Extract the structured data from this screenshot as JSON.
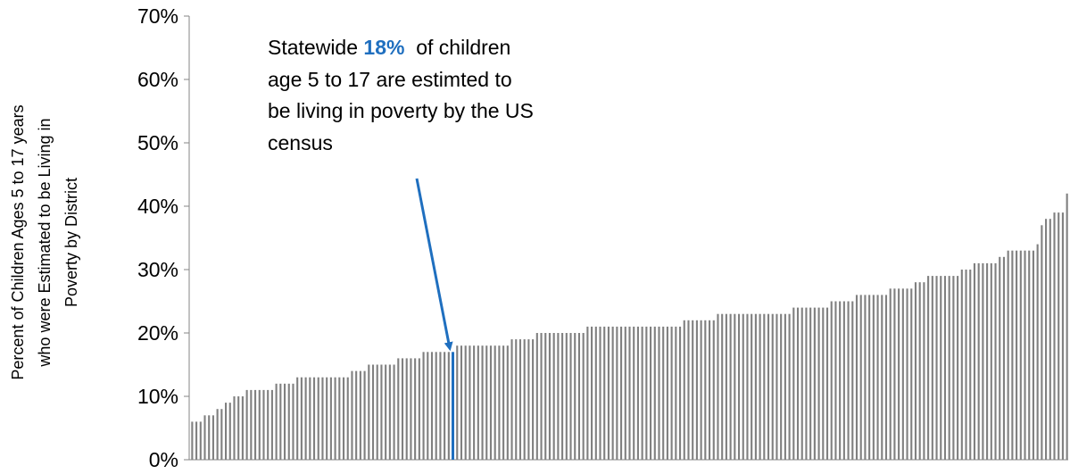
{
  "chart_data": {
    "type": "bar",
    "ylabel_lines": [
      "Percent of Children Ages 5 to 17 years",
      "who were Estimated to be Living in",
      "Poverty by District"
    ],
    "ylim": [
      0,
      70
    ],
    "yticks": [
      "0%",
      "10%",
      "20%",
      "30%",
      "40%",
      "50%",
      "60%",
      "70%"
    ],
    "bar_color": "#808080",
    "highlight_color": "#1f6fbf",
    "highlight_index": 62,
    "values": [
      6,
      6,
      6,
      7,
      7,
      7,
      8,
      8,
      9,
      9,
      10,
      10,
      10,
      11,
      11,
      11,
      11,
      11,
      11,
      11,
      12,
      12,
      12,
      12,
      12,
      13,
      13,
      13,
      13,
      13,
      13,
      13,
      13,
      13,
      13,
      13,
      13,
      13,
      14,
      14,
      14,
      14,
      15,
      15,
      15,
      15,
      15,
      15,
      15,
      16,
      16,
      16,
      16,
      16,
      16,
      17,
      17,
      17,
      17,
      17,
      17,
      17,
      17,
      18,
      18,
      18,
      18,
      18,
      18,
      18,
      18,
      18,
      18,
      18,
      18,
      18,
      19,
      19,
      19,
      19,
      19,
      19,
      20,
      20,
      20,
      20,
      20,
      20,
      20,
      20,
      20,
      20,
      20,
      20,
      21,
      21,
      21,
      21,
      21,
      21,
      21,
      21,
      21,
      21,
      21,
      21,
      21,
      21,
      21,
      21,
      21,
      21,
      21,
      21,
      21,
      21,
      21,
      22,
      22,
      22,
      22,
      22,
      22,
      22,
      22,
      23,
      23,
      23,
      23,
      23,
      23,
      23,
      23,
      23,
      23,
      23,
      23,
      23,
      23,
      23,
      23,
      23,
      23,
      24,
      24,
      24,
      24,
      24,
      24,
      24,
      24,
      24,
      25,
      25,
      25,
      25,
      25,
      25,
      26,
      26,
      26,
      26,
      26,
      26,
      26,
      26,
      27,
      27,
      27,
      27,
      27,
      27,
      28,
      28,
      28,
      29,
      29,
      29,
      29,
      29,
      29,
      29,
      29,
      30,
      30,
      30,
      31,
      31,
      31,
      31,
      31,
      31,
      32,
      32,
      33,
      33,
      33,
      33,
      33,
      33,
      33,
      34,
      37,
      38,
      38,
      39,
      39,
      39,
      42
    ],
    "annotation": {
      "line1_before": "Statewide ",
      "line1_highlight": "18%",
      "line1_after": "  of children",
      "line2": "age 5 to 17 are estimted to",
      "line3": "be living in poverty by the US",
      "line4": "census"
    }
  }
}
